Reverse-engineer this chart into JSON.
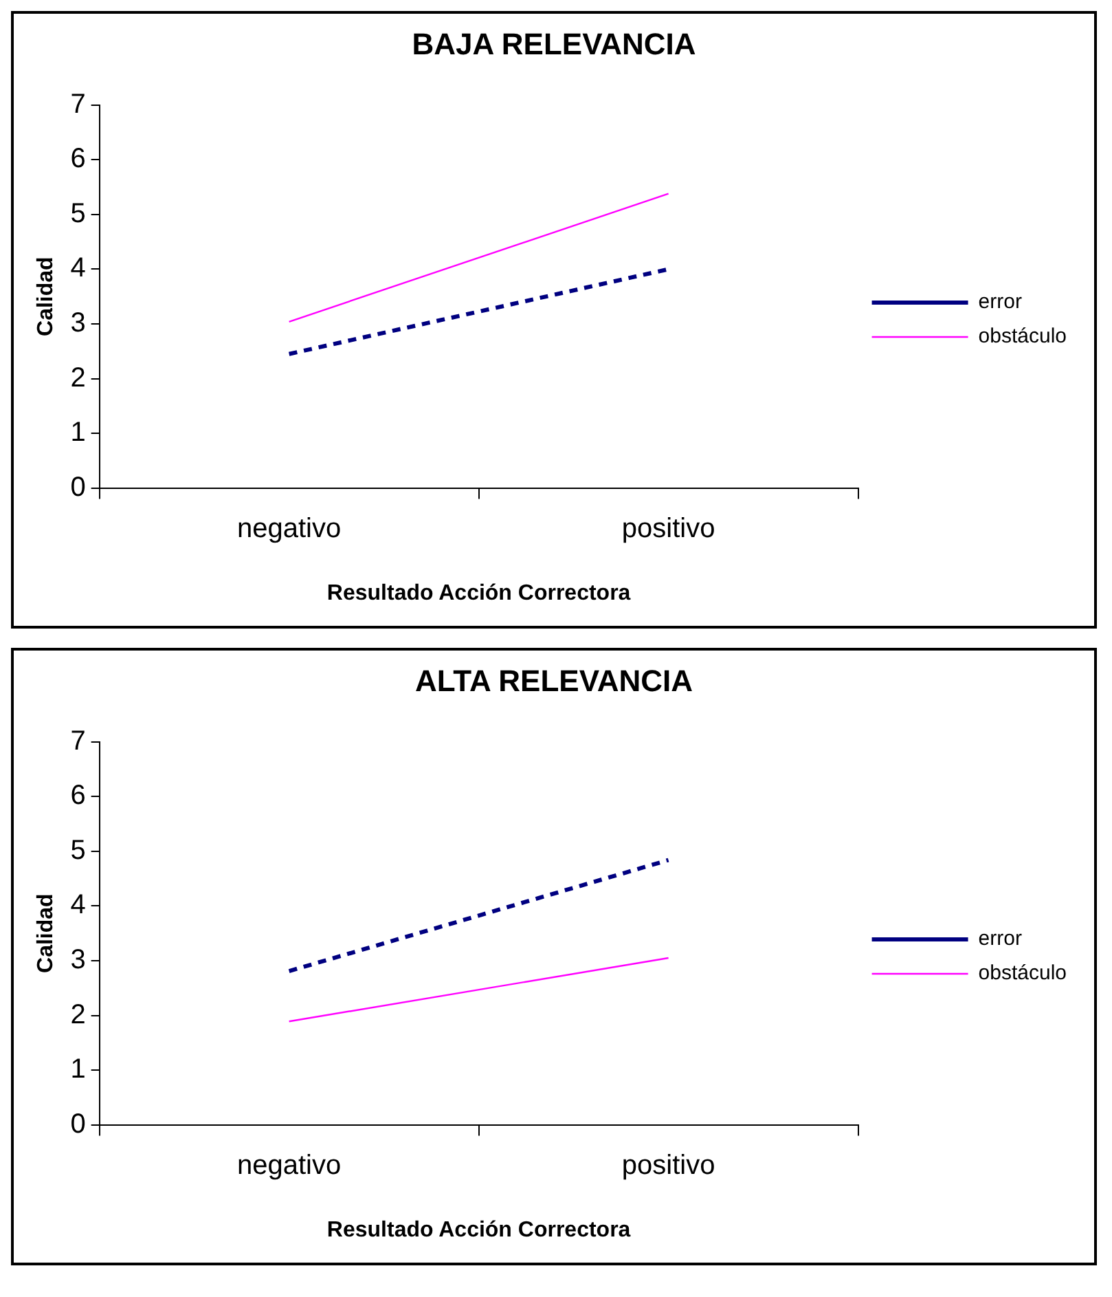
{
  "chart_data": [
    {
      "type": "line",
      "title": "BAJA RELEVANCIA",
      "xlabel": "Resultado Acción Correctora",
      "ylabel": "Calidad",
      "categories": [
        "negativo",
        "positivo"
      ],
      "ylim": [
        0,
        7
      ],
      "yticks": [
        0,
        1,
        2,
        3,
        4,
        5,
        6,
        7
      ],
      "grid": false,
      "legend": "right",
      "marker": "none",
      "series": [
        {
          "name": "error",
          "color": "#000080",
          "line_style": "dashed",
          "values": [
            2.45,
            4.0
          ]
        },
        {
          "name": "obstáculo",
          "color": "#ff00ff",
          "line_style": "solid",
          "values": [
            3.04,
            5.38
          ]
        }
      ]
    },
    {
      "type": "line",
      "title": "ALTA RELEVANCIA",
      "xlabel": "Resultado Acción Correctora",
      "ylabel": "Calidad",
      "categories": [
        "negativo",
        "positivo"
      ],
      "ylim": [
        0,
        7
      ],
      "yticks": [
        0,
        1,
        2,
        3,
        4,
        5,
        6,
        7
      ],
      "grid": false,
      "legend": "right",
      "marker": "none",
      "series": [
        {
          "name": "error",
          "color": "#000080",
          "line_style": "dashed",
          "values": [
            2.81,
            4.84
          ]
        },
        {
          "name": "obstáculo",
          "color": "#ff00ff",
          "line_style": "solid",
          "values": [
            1.89,
            3.05
          ]
        }
      ]
    }
  ]
}
